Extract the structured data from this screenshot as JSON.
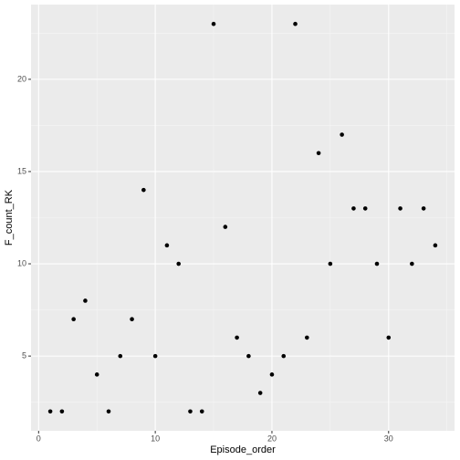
{
  "chart_data": {
    "type": "scatter",
    "x_label": "Episode_order",
    "y_label": "F_count_RK",
    "x": [
      1,
      2,
      3,
      4,
      5,
      6,
      7,
      8,
      9,
      10,
      11,
      12,
      13,
      14,
      15,
      16,
      17,
      18,
      19,
      20,
      21,
      22,
      23,
      24,
      25,
      26,
      27,
      28,
      29,
      30,
      31,
      32,
      33,
      34
    ],
    "values": [
      2,
      2,
      7,
      8,
      4,
      2,
      5,
      7,
      14,
      5,
      11,
      10,
      2,
      2,
      23,
      12,
      6,
      5,
      3,
      4,
      5,
      23,
      6,
      16,
      10,
      17,
      13,
      13,
      10,
      6,
      13,
      10,
      13,
      11
    ],
    "color": "#000000",
    "xlim": [
      -0.65,
      35.65
    ],
    "xticks": [
      0,
      10,
      20,
      30
    ],
    "ylim": [
      0.95,
      24.05
    ],
    "yticks": [
      5,
      10,
      15,
      20
    ],
    "grid": true
  }
}
